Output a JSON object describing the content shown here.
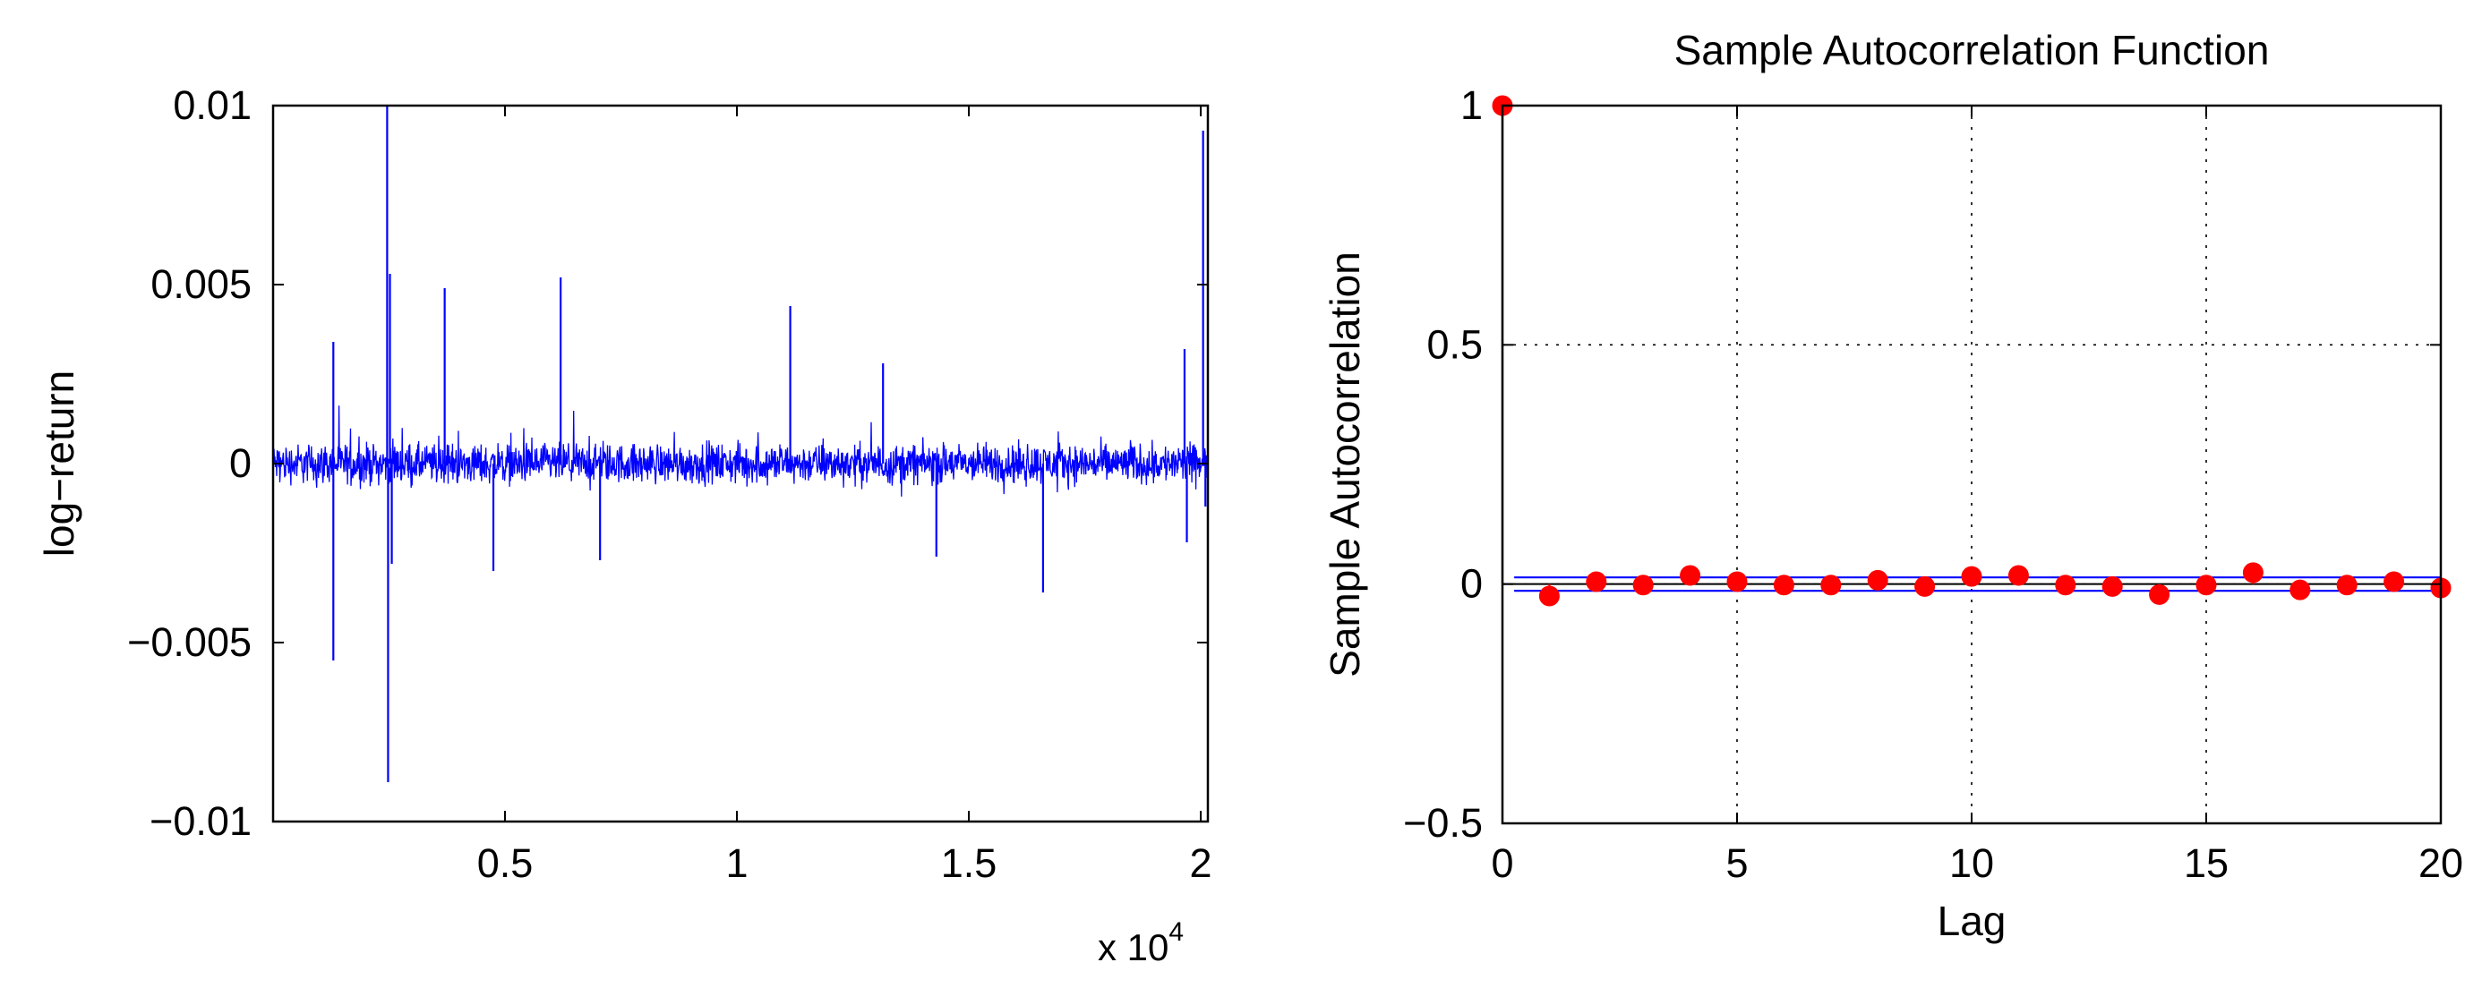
{
  "chart_data": [
    {
      "type": "line",
      "title": "",
      "xlabel": "",
      "ylabel": "log−return",
      "xlim": [
        1,
        20153
      ],
      "ylim": [
        -0.01,
        0.01
      ],
      "x_exponent_label": {
        "base": "x 10",
        "exponent": "4"
      },
      "x_ticks": [
        {
          "value": 5000,
          "label": "0.5"
        },
        {
          "value": 10000,
          "label": "1"
        },
        {
          "value": 15000,
          "label": "1.5"
        },
        {
          "value": 20000,
          "label": "2"
        }
      ],
      "y_ticks": [
        {
          "value": 0.01,
          "label": "0.01"
        },
        {
          "value": 0.005,
          "label": "0.005"
        },
        {
          "value": 0,
          "label": "0"
        },
        {
          "value": -0.005,
          "label": "−0.005"
        },
        {
          "value": -0.01,
          "label": "−0.01"
        }
      ],
      "series_color": "#0000ff",
      "grid": false,
      "spikes": [
        {
          "x": 1300,
          "y": 0.0034
        },
        {
          "x": 1300,
          "y": -0.0055
        },
        {
          "x": 2460,
          "y": 0.01
        },
        {
          "x": 2480,
          "y": -0.0089
        },
        {
          "x": 2520,
          "y": 0.0053
        },
        {
          "x": 2560,
          "y": -0.0028
        },
        {
          "x": 3700,
          "y": 0.0049
        },
        {
          "x": 4750,
          "y": -0.003
        },
        {
          "x": 6200,
          "y": 0.0052
        },
        {
          "x": 7050,
          "y": -0.0027
        },
        {
          "x": 11150,
          "y": 0.0044
        },
        {
          "x": 13150,
          "y": 0.0028
        },
        {
          "x": 14300,
          "y": -0.0026
        },
        {
          "x": 16600,
          "y": -0.0036
        },
        {
          "x": 19650,
          "y": 0.0032
        },
        {
          "x": 19700,
          "y": -0.0022
        },
        {
          "x": 20050,
          "y": 0.0093
        },
        {
          "x": 20100,
          "y": -0.0012
        }
      ],
      "noise_amplitude": 0.0008
    },
    {
      "type": "stem",
      "title": "Sample Autocorrelation Function",
      "xlabel": "Lag",
      "ylabel": "Sample Autocorrelation",
      "xlim": [
        0,
        20
      ],
      "ylim": [
        -0.5,
        1
      ],
      "x_ticks": [
        {
          "value": 0,
          "label": "0"
        },
        {
          "value": 5,
          "label": "5"
        },
        {
          "value": 10,
          "label": "10"
        },
        {
          "value": 15,
          "label": "15"
        },
        {
          "value": 20,
          "label": "20"
        }
      ],
      "y_ticks": [
        {
          "value": -0.5,
          "label": "−0.5"
        },
        {
          "value": 0,
          "label": "0"
        },
        {
          "value": 0.5,
          "label": "0.5"
        },
        {
          "value": 1,
          "label": "1"
        }
      ],
      "grid": true,
      "stem_color": "#ff0000",
      "marker_color": "#ff0000",
      "bound_color": "#0000ff",
      "confidence_bounds": [
        0.014,
        -0.014
      ],
      "lags": [
        0,
        1,
        2,
        3,
        4,
        5,
        6,
        7,
        8,
        9,
        10,
        11,
        12,
        13,
        14,
        15,
        16,
        17,
        18,
        19,
        20
      ],
      "values": [
        1.0,
        -0.025,
        0.005,
        -0.002,
        0.018,
        0.005,
        -0.002,
        -0.002,
        0.008,
        -0.005,
        0.016,
        0.018,
        -0.002,
        -0.005,
        -0.022,
        -0.002,
        0.024,
        -0.012,
        -0.002,
        0.005,
        -0.008
      ]
    }
  ]
}
